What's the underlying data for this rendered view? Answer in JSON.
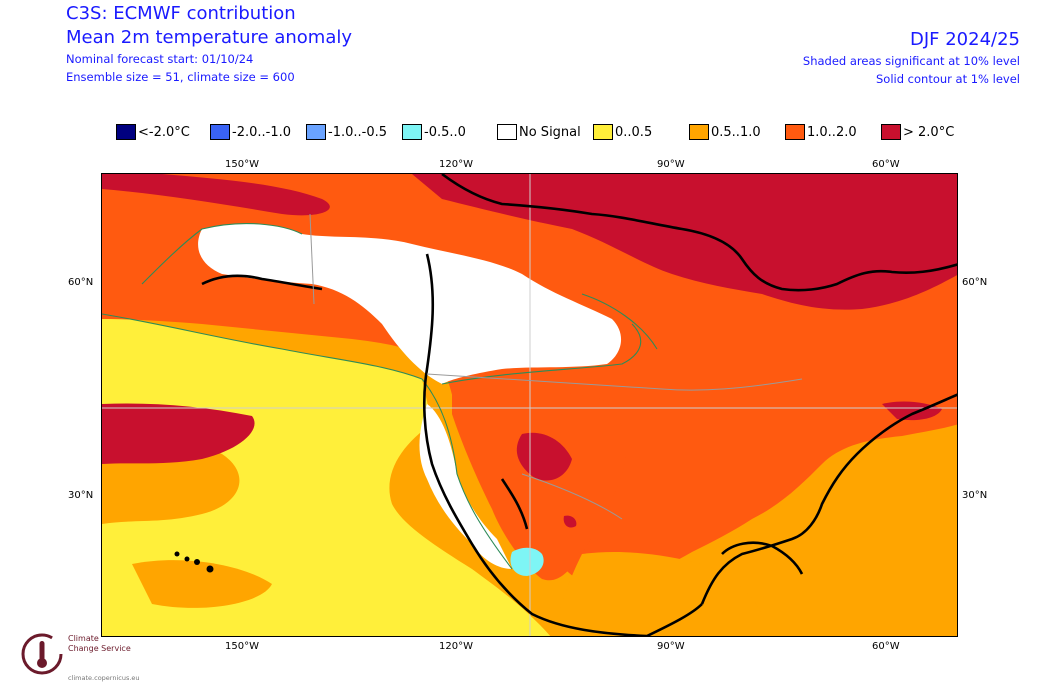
{
  "header": {
    "title": "C3S: ECMWF contribution",
    "subtitle": "Mean 2m temperature anomaly",
    "forecast_start": "Nominal forecast start: 01/10/24",
    "ensemble": "Ensemble size = 51, climate size = 600",
    "period": "DJF 2024/25",
    "significance": "Shaded areas significant at 10% level",
    "contour": "Solid contour at 1% level"
  },
  "legend": [
    {
      "label": "<-2.0°C",
      "color": "#000080"
    },
    {
      "label": "-2.0..-1.0",
      "color": "#3a63f5"
    },
    {
      "label": "-1.0..-0.5",
      "color": "#6aa3ff"
    },
    {
      "label": "-0.5..0",
      "color": "#7ef5f5"
    },
    {
      "label": "No Signal",
      "color": "#ffffff"
    },
    {
      "label": "0..0.5",
      "color": "#ffef3a"
    },
    {
      "label": "0.5..1.0",
      "color": "#ffa500"
    },
    {
      "label": "1.0..2.0",
      "color": "#ff5a10"
    },
    {
      "label": "> 2.0°C",
      "color": "#c8102e"
    }
  ],
  "axes": {
    "lon_top": [
      "150°W",
      "120°W",
      "90°W",
      "60°W"
    ],
    "lon_bottom": [
      "150°W",
      "120°W",
      "90°W",
      "60°W"
    ],
    "lat_left": [
      "60°N",
      "30°N"
    ],
    "lat_right": [
      "60°N",
      "30°N"
    ]
  },
  "logo": {
    "line1": "Climate",
    "line2": "Change Service",
    "url": "climate.copernicus.eu"
  }
}
